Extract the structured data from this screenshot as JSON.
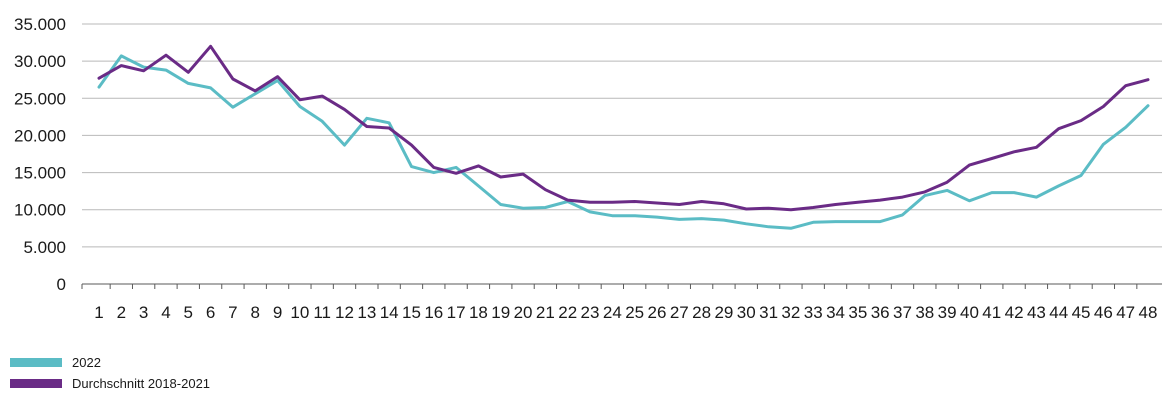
{
  "chart_data": {
    "type": "line",
    "title": "",
    "xlabel": "",
    "ylabel": "",
    "x": [
      1,
      2,
      3,
      4,
      5,
      6,
      7,
      8,
      9,
      10,
      11,
      12,
      13,
      14,
      15,
      16,
      17,
      18,
      19,
      20,
      21,
      22,
      23,
      24,
      25,
      26,
      27,
      28,
      29,
      30,
      31,
      32,
      33,
      34,
      35,
      36,
      37,
      38,
      39,
      40,
      41,
      42,
      43,
      44,
      45,
      46,
      47,
      48
    ],
    "ylim": [
      0,
      35000
    ],
    "yticks": [
      0,
      5000,
      10000,
      15000,
      20000,
      25000,
      30000,
      35000
    ],
    "ytick_labels": [
      "0",
      "5.000",
      "10.000",
      "15.000",
      "20.000",
      "25.000",
      "30.000",
      "35.000"
    ],
    "grid": true,
    "legend_position": "bottom-left",
    "series": [
      {
        "name": "2022",
        "color": "#5bbcc5",
        "values": [
          26500,
          30700,
          29200,
          28800,
          27000,
          26400,
          23800,
          25600,
          27400,
          23900,
          21900,
          18700,
          22300,
          21700,
          15800,
          15000,
          15700,
          13200,
          10700,
          10200,
          10300,
          11100,
          9700,
          9200,
          9200,
          9000,
          8700,
          8800,
          8600,
          8100,
          7700,
          7500,
          8300,
          8400,
          8400,
          8400,
          9300,
          11900,
          12600,
          11200,
          12300,
          12300,
          11700,
          13200,
          14600,
          18800,
          21100,
          24000
        ]
      },
      {
        "name": "Durchschnitt 2018-2021",
        "color": "#6a2b86",
        "values": [
          27700,
          29400,
          28700,
          30800,
          28500,
          32000,
          27600,
          26000,
          27900,
          24800,
          25300,
          23500,
          21200,
          21000,
          18700,
          15700,
          14900,
          15900,
          14400,
          14800,
          12700,
          11300,
          11000,
          11000,
          11100,
          10900,
          10700,
          11100,
          10800,
          10100,
          10200,
          10000,
          10300,
          10700,
          11000,
          11300,
          11700,
          12400,
          13700,
          16000,
          16900,
          17800,
          18400,
          20900,
          22000,
          23900,
          26700,
          27500
        ]
      }
    ]
  }
}
